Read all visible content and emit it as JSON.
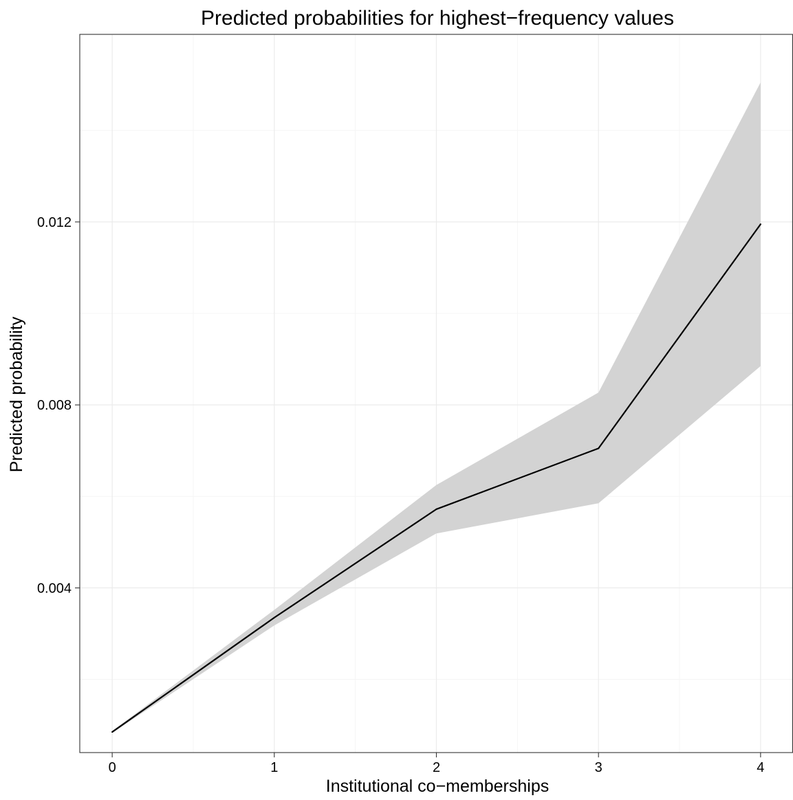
{
  "chart_data": {
    "type": "line",
    "title": "Predicted probabilities for highest−frequency values",
    "xlabel": "Institutional co−memberships",
    "ylabel": "Predicted probability",
    "x": [
      0,
      1,
      2,
      3,
      4
    ],
    "xlim": [
      -0.2,
      4.2
    ],
    "ylim": [
      0.0004,
      0.0161
    ],
    "x_ticks": [
      0,
      1,
      2,
      3,
      4
    ],
    "x_tick_labels": [
      "0",
      "1",
      "2",
      "3",
      "4"
    ],
    "y_ticks": [
      0.004,
      0.008,
      0.012
    ],
    "y_tick_labels": [
      "0.004",
      "0.008",
      "0.012"
    ],
    "x_minor_gridlines": [
      0.5,
      1.5,
      2.5,
      3.5
    ],
    "y_minor_gridlines": [
      0.002,
      0.006,
      0.01,
      0.014
    ],
    "grid": true,
    "series": [
      {
        "values": [
          0.00085,
          0.00335,
          0.00572,
          0.00705,
          0.01195
        ],
        "lower": [
          0.00083,
          0.00318,
          0.00519,
          0.00585,
          0.00885
        ],
        "upper": [
          0.00087,
          0.00352,
          0.00625,
          0.00827,
          0.01505
        ]
      }
    ],
    "colors": {
      "line": "#000000",
      "ribbon": "#d3d3d3",
      "panel_border": "#333333",
      "grid_major": "#ebebeb",
      "grid_minor": "#f5f5f5"
    }
  }
}
